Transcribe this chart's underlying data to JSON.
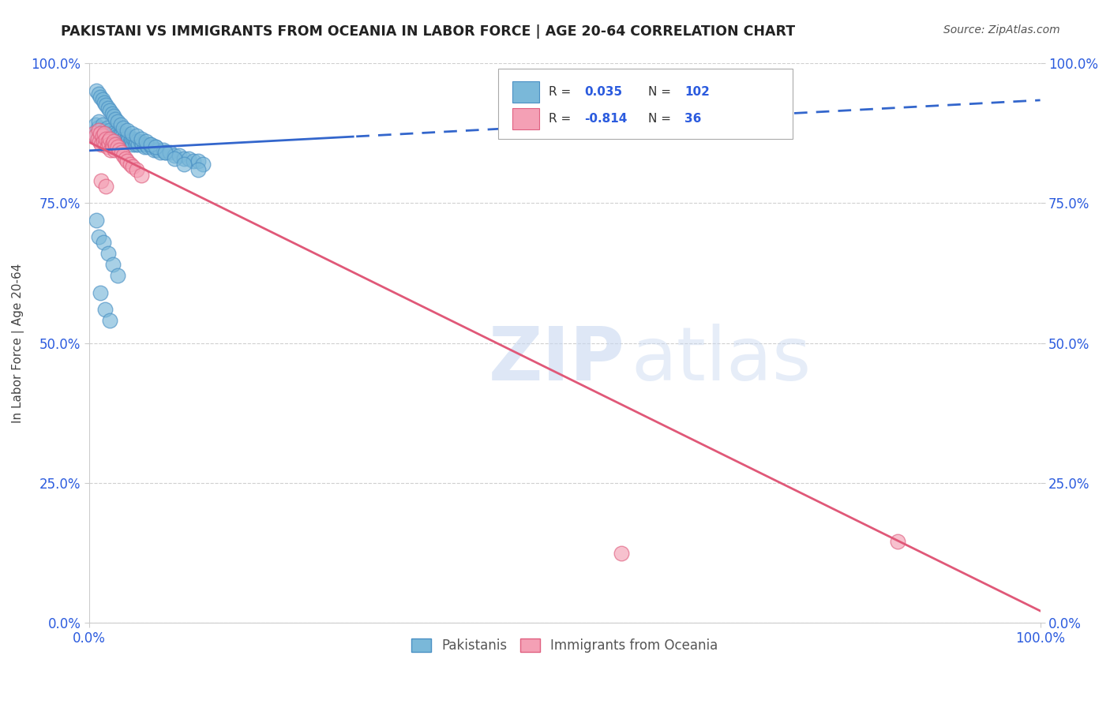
{
  "title": "PAKISTANI VS IMMIGRANTS FROM OCEANIA IN LABOR FORCE | AGE 20-64 CORRELATION CHART",
  "source": "Source: ZipAtlas.com",
  "ylabel": "In Labor Force | Age 20-64",
  "xlim": [
    0.0,
    1.0
  ],
  "ylim": [
    0.0,
    1.0
  ],
  "xticks": [
    0.0,
    1.0
  ],
  "yticks": [
    0.0,
    0.25,
    0.5,
    0.75,
    1.0
  ],
  "xticklabels": [
    "0.0%",
    "100.0%"
  ],
  "yticklabels": [
    "0.0%",
    "25.0%",
    "50.0%",
    "75.0%",
    "100.0%"
  ],
  "blue_color": "#7ab8d9",
  "pink_color": "#f4a0b5",
  "blue_edge": "#4a90c4",
  "pink_edge": "#e06080",
  "trend_blue": "#3366cc",
  "trend_pink": "#e05878",
  "R_blue": 0.035,
  "N_blue": 102,
  "R_pink": -0.814,
  "N_pink": 36,
  "legend_label_blue": "Pakistanis",
  "legend_label_pink": "Immigrants from Oceania",
  "blue_scatter_x": [
    0.005,
    0.007,
    0.008,
    0.009,
    0.01,
    0.011,
    0.012,
    0.013,
    0.014,
    0.015,
    0.016,
    0.016,
    0.017,
    0.018,
    0.019,
    0.02,
    0.021,
    0.022,
    0.023,
    0.024,
    0.025,
    0.026,
    0.027,
    0.028,
    0.029,
    0.03,
    0.031,
    0.032,
    0.033,
    0.034,
    0.035,
    0.036,
    0.037,
    0.038,
    0.039,
    0.04,
    0.041,
    0.042,
    0.043,
    0.044,
    0.045,
    0.046,
    0.047,
    0.048,
    0.049,
    0.05,
    0.052,
    0.054,
    0.056,
    0.058,
    0.06,
    0.062,
    0.064,
    0.066,
    0.068,
    0.07,
    0.072,
    0.075,
    0.078,
    0.081,
    0.085,
    0.09,
    0.095,
    0.1,
    0.105,
    0.11,
    0.115,
    0.12,
    0.008,
    0.01,
    0.012,
    0.014,
    0.016,
    0.018,
    0.02,
    0.022,
    0.024,
    0.026,
    0.028,
    0.03,
    0.033,
    0.036,
    0.04,
    0.045,
    0.05,
    0.055,
    0.06,
    0.065,
    0.07,
    0.08,
    0.09,
    0.1,
    0.115,
    0.008,
    0.01,
    0.015,
    0.02,
    0.025,
    0.03,
    0.012,
    0.017,
    0.022
  ],
  "blue_scatter_y": [
    0.87,
    0.89,
    0.875,
    0.885,
    0.895,
    0.88,
    0.865,
    0.875,
    0.89,
    0.87,
    0.88,
    0.86,
    0.875,
    0.87,
    0.885,
    0.865,
    0.875,
    0.88,
    0.87,
    0.86,
    0.875,
    0.87,
    0.865,
    0.86,
    0.875,
    0.87,
    0.865,
    0.87,
    0.86,
    0.875,
    0.87,
    0.865,
    0.86,
    0.87,
    0.865,
    0.86,
    0.87,
    0.865,
    0.86,
    0.865,
    0.86,
    0.855,
    0.865,
    0.86,
    0.855,
    0.86,
    0.855,
    0.86,
    0.855,
    0.85,
    0.855,
    0.85,
    0.855,
    0.85,
    0.845,
    0.85,
    0.845,
    0.84,
    0.845,
    0.84,
    0.84,
    0.835,
    0.835,
    0.83,
    0.83,
    0.825,
    0.825,
    0.82,
    0.95,
    0.945,
    0.94,
    0.935,
    0.93,
    0.925,
    0.92,
    0.915,
    0.91,
    0.905,
    0.9,
    0.895,
    0.89,
    0.885,
    0.88,
    0.875,
    0.87,
    0.865,
    0.86,
    0.855,
    0.85,
    0.84,
    0.83,
    0.82,
    0.81,
    0.72,
    0.69,
    0.68,
    0.66,
    0.64,
    0.62,
    0.59,
    0.56,
    0.54
  ],
  "pink_scatter_x": [
    0.005,
    0.007,
    0.009,
    0.01,
    0.011,
    0.012,
    0.013,
    0.014,
    0.015,
    0.016,
    0.017,
    0.018,
    0.019,
    0.02,
    0.021,
    0.022,
    0.023,
    0.024,
    0.025,
    0.026,
    0.027,
    0.028,
    0.03,
    0.032,
    0.034,
    0.036,
    0.038,
    0.04,
    0.043,
    0.046,
    0.05,
    0.055,
    0.013,
    0.018,
    0.56,
    0.85
  ],
  "pink_scatter_y": [
    0.875,
    0.87,
    0.865,
    0.88,
    0.86,
    0.875,
    0.855,
    0.87,
    0.86,
    0.875,
    0.855,
    0.865,
    0.85,
    0.86,
    0.855,
    0.865,
    0.845,
    0.855,
    0.85,
    0.86,
    0.845,
    0.855,
    0.85,
    0.845,
    0.84,
    0.835,
    0.83,
    0.825,
    0.82,
    0.815,
    0.81,
    0.8,
    0.79,
    0.78,
    0.125,
    0.145
  ],
  "watermark_zip": "ZIP",
  "watermark_atlas": "atlas",
  "background_color": "#ffffff",
  "grid_color": "#d0d0d0",
  "tick_color": "#2b5bde",
  "title_color": "#222222",
  "source_color": "#555555",
  "ylabel_color": "#444444"
}
